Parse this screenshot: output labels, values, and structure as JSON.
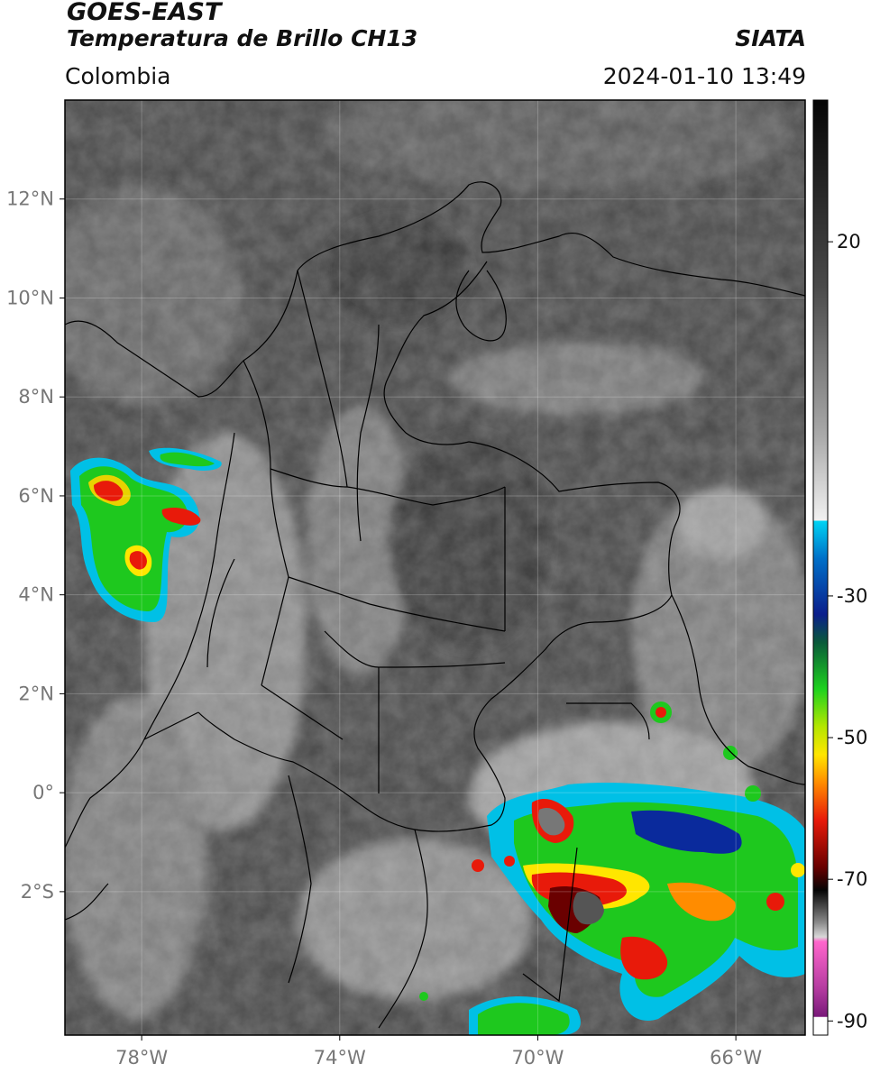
{
  "header": {
    "satellite": "GOES-EAST",
    "product": "Temperatura de Brillo CH13",
    "region": "Colombia",
    "agency": "SIATA",
    "timestamp": "2024-01-10 13:49"
  },
  "map": {
    "lat_labels": [
      {
        "lat": 12,
        "text": "12°N"
      },
      {
        "lat": 10,
        "text": "10°N"
      },
      {
        "lat": 8,
        "text": "8°N"
      },
      {
        "lat": 6,
        "text": "6°N"
      },
      {
        "lat": 4,
        "text": "4°N"
      },
      {
        "lat": 2,
        "text": "2°N"
      },
      {
        "lat": 0,
        "text": "0°"
      },
      {
        "lat": -2,
        "text": "2°S"
      }
    ],
    "lon_labels": [
      {
        "lon": -78,
        "text": "78°W"
      },
      {
        "lon": -74,
        "text": "74°W"
      },
      {
        "lon": -70,
        "text": "70°W"
      },
      {
        "lon": -66,
        "text": "66°W"
      }
    ],
    "lon_range": [
      -79.55,
      -64.6
    ],
    "lat_range": [
      -4.9,
      14.0
    ],
    "colors": {
      "background_cloud_free": "#4a4a4a",
      "cold_cloud_tops": [
        "#00c8f0",
        "#0a2a9c",
        "#00d21e",
        "#ffe600",
        "#e81a0a",
        "#6a0000"
      ]
    }
  },
  "colorbar": {
    "ticks": [
      {
        "value": 20,
        "text": "20"
      },
      {
        "value": -30,
        "text": "-30"
      },
      {
        "value": -50,
        "text": "-50"
      },
      {
        "value": -70,
        "text": "-70"
      },
      {
        "value": -90,
        "text": "-90"
      }
    ],
    "range": [
      -92,
      40
    ]
  }
}
